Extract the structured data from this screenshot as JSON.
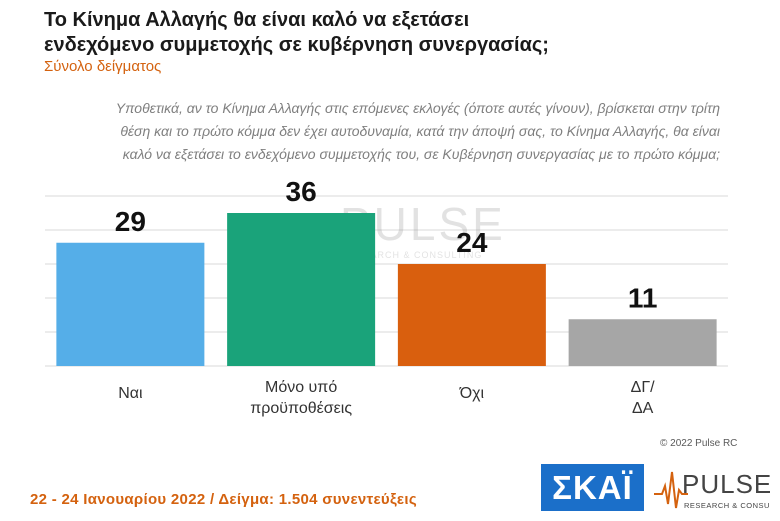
{
  "header": {
    "title_line1": "Το Κίνημα Αλλαγής θα είναι καλό να εξετάσει",
    "title_line2": "ενδεχόμενο συμμετοχής σε κυβέρνηση συνεργασίας;",
    "subtitle": "Σύνολο δείγματος",
    "question_line1": "Υποθετικά, αν το Κίνημα Αλλαγής στις επόμενες εκλογές (όποτε αυτές γίνουν), βρίσκεται στην τρίτη",
    "question_line2": "θέση και το πρώτο κόμμα δεν έχει αυτοδυναμία, κατά την άποψή σας, το Κίνημα Αλλαγής, θα είναι",
    "question_line3": "καλό να εξετάσει το ενδεχόμενο συμμετοχής του, σε Κυβέρνηση συνεργασίας με το πρώτο κόμμα;"
  },
  "chart_data": {
    "type": "bar",
    "categories": [
      [
        "Ναι"
      ],
      [
        "Μόνο υπό",
        "προϋποθέσεις"
      ],
      [
        "Όχι"
      ],
      [
        "ΔΓ/",
        "ΔΑ"
      ]
    ],
    "values": [
      29,
      36,
      24,
      11
    ],
    "colors": [
      "#55aee8",
      "#1aa37a",
      "#d95f0e",
      "#a6a6a6"
    ],
    "ylim": [
      0,
      40
    ],
    "grid": true,
    "watermark": "PULSE",
    "watermark_sub": "RESEARCH & CONSULTING"
  },
  "footer": {
    "copyright": "© 2022 Pulse RC",
    "fieldwork": "22 - 24 Ιανουαρίου 2022 / Δείγμα: 1.504 συνεντεύξεις"
  },
  "logos": {
    "skai": "ΣΚΑΪ",
    "pulse": "PULSE",
    "pulse_sub": "RESEARCH & CONSULTING",
    "pulse_color": "#d4620f"
  }
}
